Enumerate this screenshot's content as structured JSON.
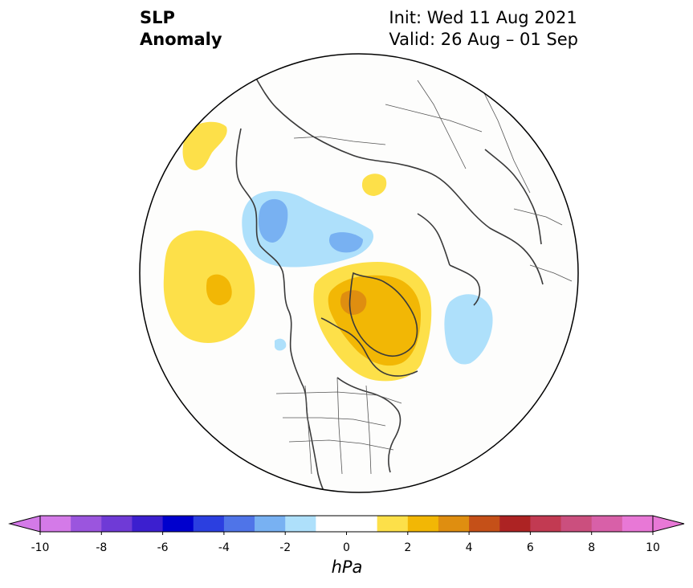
{
  "title": {
    "left_line1": "SLP",
    "left_line2": "Anomaly",
    "init": "Init: Wed 11 Aug 2021",
    "valid": "Valid: 26 Aug – 01 Sep"
  },
  "colorbar": {
    "label": "hPa",
    "ticks": [
      "-10",
      "-8",
      "-6",
      "-4",
      "-2",
      "0",
      "2",
      "4",
      "6",
      "8",
      "10"
    ],
    "colors": [
      "#d47ae8",
      "#9b55de",
      "#6f3ad6",
      "#3c1fcf",
      "#0000cd",
      "#2b3fe0",
      "#4f74e8",
      "#78b1f2",
      "#aee0fb",
      "#ffffff",
      "#ffffff",
      "#fde049",
      "#f2b705",
      "#df8e10",
      "#c55018",
      "#ad2323",
      "#c23a52",
      "#cb4f7e",
      "#d860a8",
      "#e878d6"
    ],
    "extend": "both"
  },
  "map": {
    "projection": "north-polar-stereographic",
    "anomaly_colors": {
      "neg1": "#aee0fb",
      "neg2": "#78b1f2",
      "pos1": "#fde049",
      "pos2": "#f2b705",
      "pos3": "#df8e10"
    }
  }
}
